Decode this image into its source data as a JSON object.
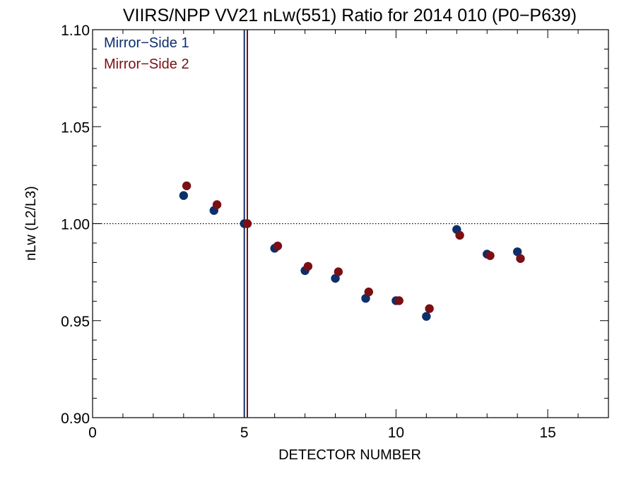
{
  "chart_data": {
    "type": "scatter",
    "title": "VIIRS/NPP VV21 nLw(551) Ratio for 2014 010 (P0−P639)",
    "xlabel": "DETECTOR NUMBER",
    "ylabel": "nLw (L2/L3)",
    "xlim": [
      0,
      17
    ],
    "ylim": [
      0.9,
      1.1
    ],
    "x_ticks": [
      0,
      5,
      10,
      15
    ],
    "x_tick_labels": [
      "0",
      "5",
      "10",
      "15"
    ],
    "y_ticks": [
      0.9,
      0.95,
      1.0,
      1.05,
      1.1
    ],
    "y_tick_labels": [
      "0.90",
      "0.95",
      "1.00",
      "1.05",
      "1.10"
    ],
    "reference_line": {
      "y": 1.0,
      "style": "dotted"
    },
    "vertical_lines": [
      {
        "x": 5.0,
        "series": "Mirror−Side 1"
      },
      {
        "x": 5.1,
        "series": "Mirror−Side 2"
      }
    ],
    "legend_placement": "top-left",
    "grid": false,
    "series": [
      {
        "name": "Mirror−Side 1",
        "color": "#0d2f6b",
        "x": [
          3,
          4,
          5,
          6,
          7,
          8,
          9,
          10,
          11,
          12,
          13,
          14
        ],
        "y": [
          1.0145,
          1.0068,
          1.0,
          0.9873,
          0.9758,
          0.9718,
          0.9615,
          0.9603,
          0.9522,
          0.997,
          0.9843,
          0.9855
        ]
      },
      {
        "name": "Mirror−Side 2",
        "color": "#7a0f14",
        "x": [
          3.1,
          4.1,
          5.1,
          6.1,
          7.1,
          8.1,
          9.1,
          10.1,
          11.1,
          12.1,
          13.1,
          14.1
        ],
        "y": [
          1.0195,
          1.0098,
          1.0,
          0.9885,
          0.978,
          0.9752,
          0.9648,
          0.9603,
          0.9562,
          0.994,
          0.9835,
          0.982
        ]
      }
    ]
  }
}
